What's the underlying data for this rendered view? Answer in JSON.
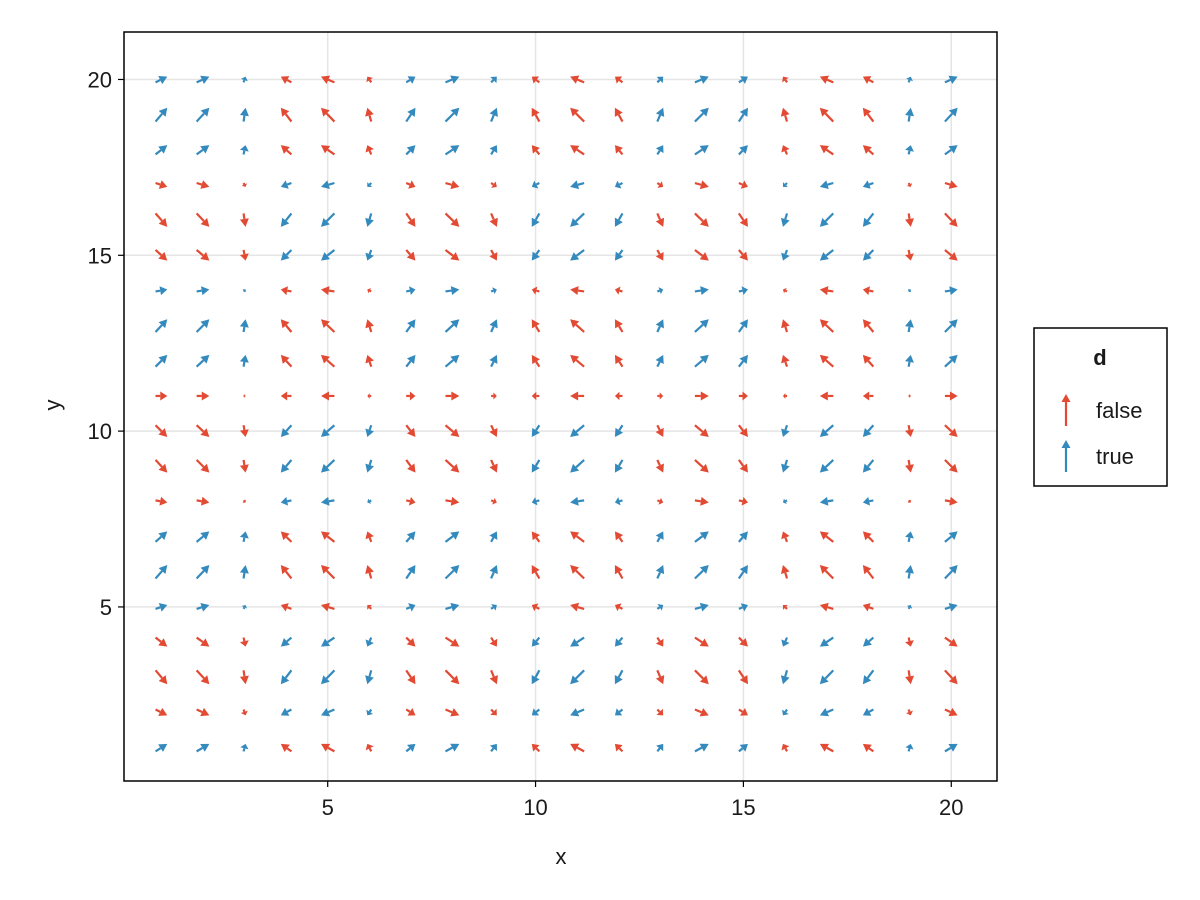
{
  "chart_data": {
    "type": "quiver",
    "xlabel": "x",
    "ylabel": "y",
    "xlim": [
      0.1,
      21.1
    ],
    "ylim": [
      0.05,
      21.35
    ],
    "x_ticks": [
      5,
      10,
      15,
      20
    ],
    "y_ticks": [
      5,
      10,
      15,
      20
    ],
    "grid": true,
    "x_positions": [
      1.0,
      2.0,
      3.0,
      4.0,
      5.0,
      6.0,
      7.0,
      8.0,
      9.0,
      10.0,
      11.0,
      12.0,
      13.0,
      14.0,
      15.0,
      16.0,
      17.0,
      18.0,
      19.0,
      20.0
    ],
    "y_positions": [
      1.0,
      2.0,
      3.0,
      4.0,
      5.0,
      6.0,
      7.0,
      8.0,
      9.0,
      10.0,
      11.0,
      12.0,
      13.0,
      14.0,
      15.0,
      16.0,
      17.0,
      18.0,
      19.0,
      20.0
    ],
    "u_row": [
      0.84,
      0.91,
      0.14,
      -0.76,
      -0.96,
      -0.28,
      0.66,
      0.99,
      0.41,
      -0.54,
      -1.0,
      -0.54,
      0.42,
      0.99,
      0.65,
      -0.29,
      -0.96,
      -0.75,
      0.15,
      0.91
    ],
    "v_col": [
      0.54,
      -0.42,
      -0.99,
      -0.65,
      0.28,
      0.96,
      0.75,
      -0.15,
      -0.91,
      -0.84,
      0.0,
      0.84,
      0.91,
      0.14,
      -0.76,
      -0.96,
      -0.28,
      0.66,
      0.99,
      0.41
    ],
    "color_rule": "d = u * v > 0",
    "legend": {
      "title": "d",
      "position": "right",
      "entries": [
        {
          "label": "false",
          "color": "#e24a33"
        },
        {
          "label": "true",
          "color": "#348abd"
        }
      ]
    }
  }
}
